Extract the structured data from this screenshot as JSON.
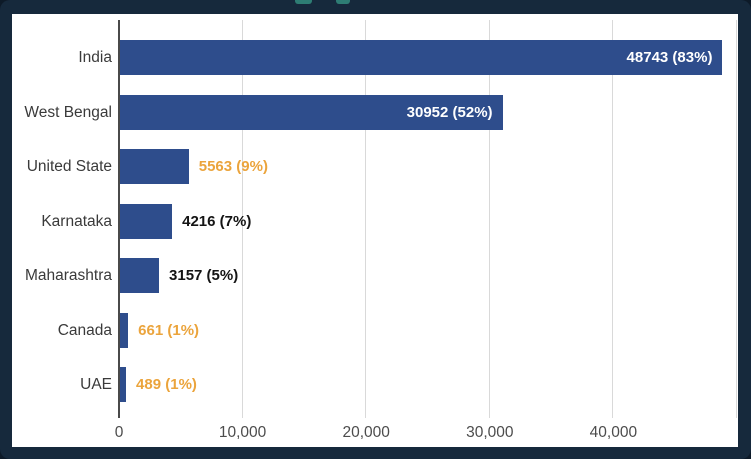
{
  "window": {
    "frame_color": "#16293c",
    "panel_color": "#ffffff",
    "clipped_title_fragment_color": "#2e7d74"
  },
  "chart_data": {
    "type": "bar",
    "orientation": "horizontal",
    "title": "",
    "xlabel": "",
    "ylabel": "",
    "categories": [
      "India",
      "West Bengal",
      "United State",
      "Karnataka",
      "Maharashtra",
      "Canada",
      "UAE"
    ],
    "values": [
      48743,
      30952,
      5563,
      4216,
      3157,
      661,
      489
    ],
    "value_labels": [
      "48743 (83%)",
      "30952 (52%)",
      "5563 (9%)",
      "4216 (7%)",
      "3157 (5%)",
      "661 (1%)",
      "489 (1%)"
    ],
    "value_label_placement": [
      "inside",
      "inside",
      "outside",
      "outside",
      "outside",
      "outside",
      "outside"
    ],
    "value_label_colors": [
      "#ffffff",
      "#ffffff",
      "#eba43c",
      "#141414",
      "#141414",
      "#eba43c",
      "#eba43c"
    ],
    "bar_color": "#2e4d8c",
    "xlim": [
      0,
      50000
    ],
    "x_ticks": [
      {
        "value": 0,
        "label": "0"
      },
      {
        "value": 10000,
        "label": "10,000"
      },
      {
        "value": 20000,
        "label": "20,000"
      },
      {
        "value": 30000,
        "label": "30,000"
      },
      {
        "value": 40000,
        "label": "40,000"
      },
      {
        "value": 50000,
        "label": ""
      }
    ],
    "grid": true,
    "legend": "none",
    "axis_color": "#4a4a4a",
    "gridline_color": "#d9d9d9",
    "tick_label_color": "#4c4c4c",
    "category_label_color": "#3a3a3a"
  }
}
